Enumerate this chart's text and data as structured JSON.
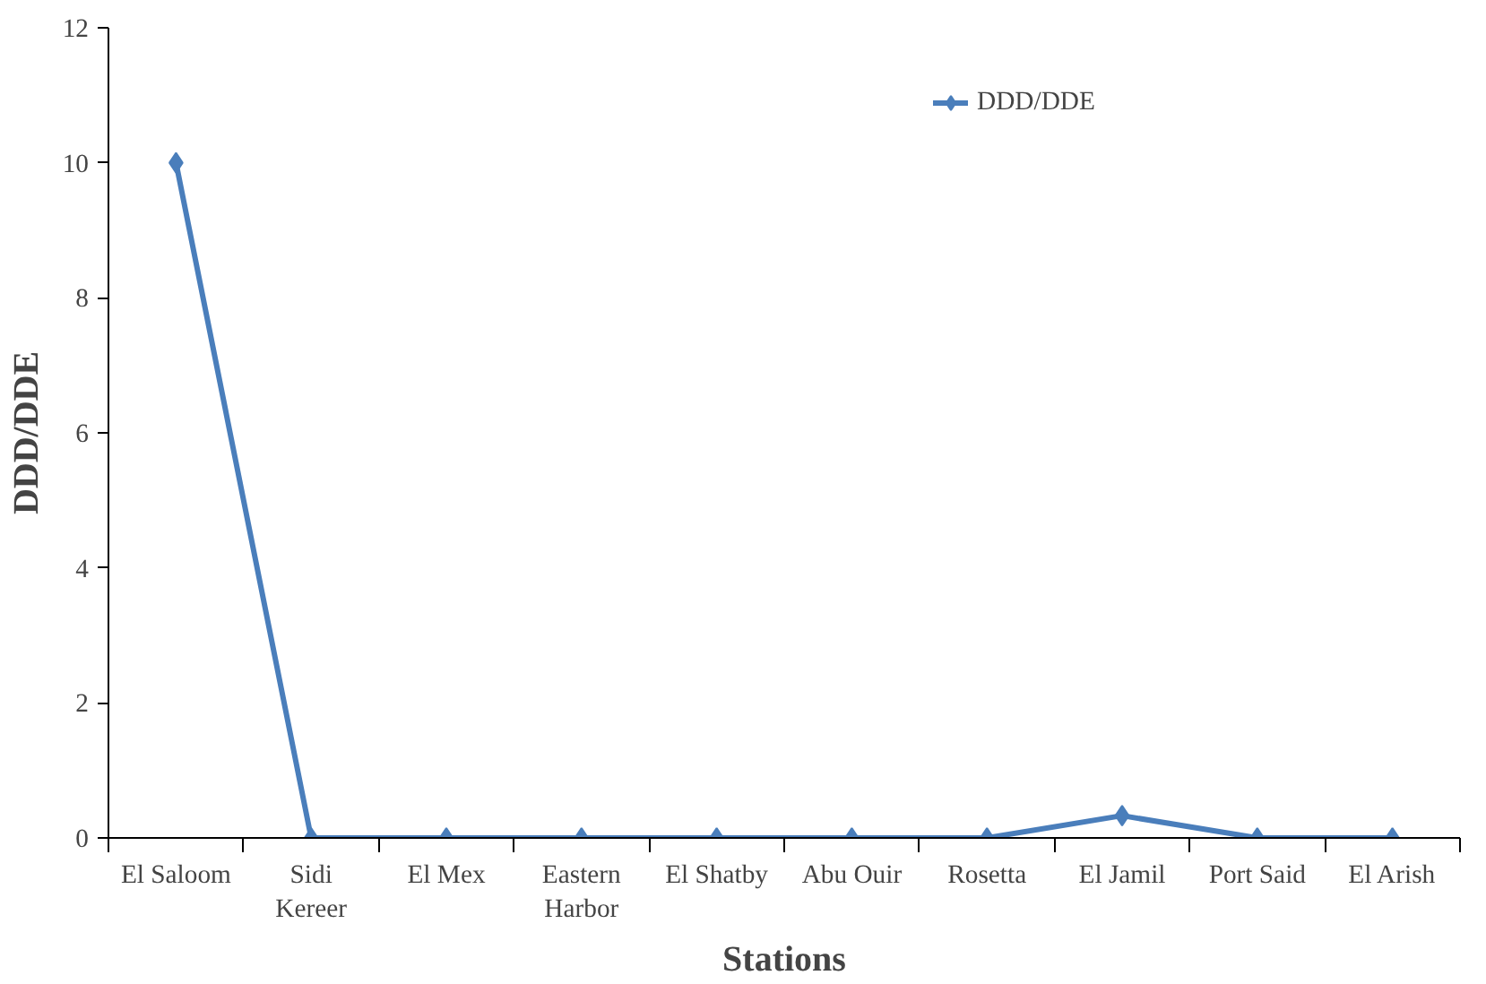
{
  "chart_data": {
    "type": "line",
    "xlabel": "Stations",
    "ylabel": "DDD/DDE",
    "categories": [
      "El Saloom",
      "Sidi Kereer",
      "El Mex",
      "Eastern Harbor",
      "El Shatby",
      "Abu Ouir",
      "Rosetta",
      "El Jamil",
      "Port Said",
      "El Arish"
    ],
    "series": [
      {
        "name": "DDD/DDE",
        "color": "#4a7ebb",
        "values": [
          10,
          0,
          0,
          0,
          0,
          0,
          0,
          0.33,
          0,
          0
        ]
      }
    ],
    "ylim": [
      0,
      12
    ],
    "yticks": [
      0,
      2,
      4,
      6,
      8,
      10,
      12
    ],
    "grid": false,
    "legend": "top right",
    "marker": "diamond",
    "line_style": "solid"
  }
}
